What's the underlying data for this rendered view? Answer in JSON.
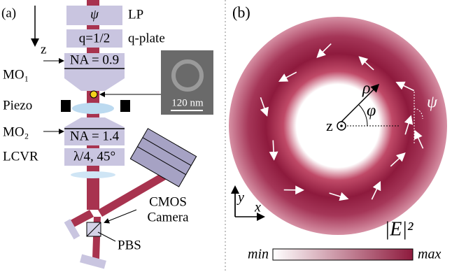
{
  "panel_a": {
    "label": "(a)",
    "axis": "z",
    "lp": {
      "symbol": "ψ",
      "name": "LP"
    },
    "qplate": {
      "symbol": "q=1/2",
      "name": "q-plate"
    },
    "mo1": {
      "na": "NA = 0.9",
      "name": "MO₁"
    },
    "piezo": "Piezo",
    "inset_scale": "120 nm",
    "mo2": {
      "na": "NA = 1.4",
      "name": "MO₂"
    },
    "lcvr": {
      "setting": "λ/4, 45°",
      "name": "LCVR"
    },
    "camera": [
      "CMOS",
      "Camera"
    ],
    "pbs": "PBS"
  },
  "panel_b": {
    "label": "(b)",
    "rho": "ρ",
    "phi": "φ",
    "psi": "ψ",
    "z": "z",
    "y": "y",
    "x": "x",
    "field": "|E|²",
    "min": "min",
    "max": "max"
  }
}
